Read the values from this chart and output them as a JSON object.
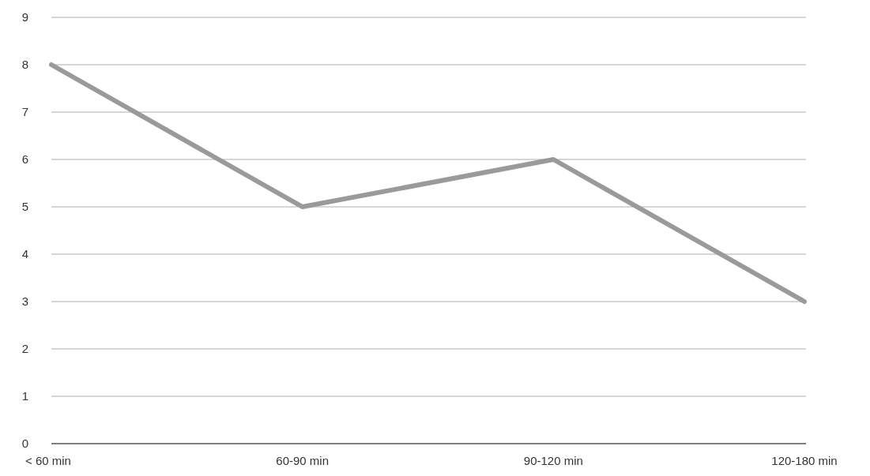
{
  "chart_data": {
    "type": "line",
    "categories": [
      "< 60 min",
      "60-90 min",
      "90-120 min",
      "120-180 min"
    ],
    "series": [
      {
        "color": "#9a9a9a",
        "values": [
          8,
          5,
          6,
          3
        ]
      }
    ],
    "ylim": [
      0,
      9
    ],
    "yticks": [
      0,
      1,
      2,
      3,
      4,
      5,
      6,
      7,
      8,
      9
    ],
    "grid": "y",
    "marker": "none",
    "line_style": "solid"
  }
}
